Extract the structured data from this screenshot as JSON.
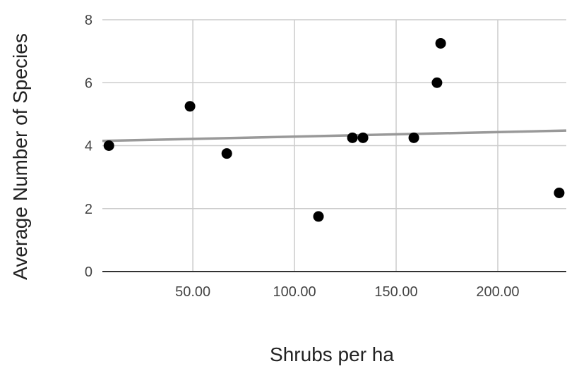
{
  "chart_data": {
    "type": "scatter",
    "title": "",
    "xlabel": "Shrubs per ha",
    "ylabel": "Average Number of Species",
    "xlim": [
      5.5,
      233.7
    ],
    "ylim": [
      0,
      8
    ],
    "xticks": [
      50,
      100,
      150,
      200
    ],
    "xtick_labels": [
      "50.00",
      "100.00",
      "150.00",
      "200.00"
    ],
    "yticks": [
      0,
      2,
      4,
      6,
      8
    ],
    "ytick_labels": [
      "0",
      "2",
      "4",
      "6",
      "8"
    ],
    "grid": true,
    "legend": "none",
    "points": [
      {
        "x": 8.7,
        "y": 4.0
      },
      {
        "x": 48.6,
        "y": 5.25
      },
      {
        "x": 66.7,
        "y": 3.75
      },
      {
        "x": 111.8,
        "y": 1.75
      },
      {
        "x": 128.5,
        "y": 4.25
      },
      {
        "x": 133.7,
        "y": 4.25
      },
      {
        "x": 158.7,
        "y": 4.25
      },
      {
        "x": 170.1,
        "y": 6.0
      },
      {
        "x": 171.9,
        "y": 7.25
      },
      {
        "x": 230.2,
        "y": 2.5
      }
    ],
    "trendline": {
      "type": "linear",
      "start": {
        "x": 5.5,
        "y": 4.15
      },
      "end": {
        "x": 233.7,
        "y": 4.48
      }
    },
    "colors": {
      "points": "#000000",
      "trendline": "#999999",
      "grid": "#cccccc",
      "axis": "#333333"
    }
  }
}
